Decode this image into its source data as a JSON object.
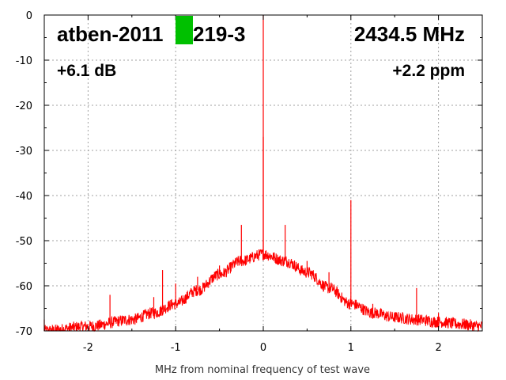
{
  "chart_data": {
    "type": "line",
    "xlabel": "MHz from nominal frequency of test wave",
    "ylabel": "",
    "xlim": [
      -2.5,
      2.5
    ],
    "ylim": [
      -70,
      0
    ],
    "x_ticks": [
      -2,
      -1,
      0,
      1,
      2
    ],
    "y_ticks": [
      0,
      -10,
      -20,
      -30,
      -40,
      -50,
      -60,
      -70
    ],
    "grid": true,
    "annotations": {
      "device": "atben-2011",
      "device_suffix": "219-3",
      "frequency": "2434.5 MHz",
      "level": "+6.1 dB",
      "offset": "+2.2 ppm"
    },
    "colors": {
      "series": "#ff0000",
      "marker": "#00c000",
      "grid": "#a0a0a0"
    },
    "series": [
      {
        "name": "",
        "noise_floor_envelope": {
          "x": [
            -2.5,
            -2.0,
            -1.5,
            -1.25,
            -1.0,
            -0.75,
            -0.5,
            -0.25,
            0.0,
            0.25,
            0.5,
            0.75,
            1.0,
            1.25,
            1.5,
            1.75,
            2.0,
            2.25,
            2.5
          ],
          "y": [
            -70,
            -69,
            -67.5,
            -66,
            -64,
            -61,
            -57.5,
            -54.5,
            -53,
            -54.5,
            -57,
            -60.5,
            -64,
            -66,
            -67,
            -67.5,
            -68,
            -68.5,
            -69
          ]
        },
        "spikes": {
          "x": [
            -2.5,
            -1.75,
            -1.25,
            -1.15,
            -1.0,
            -0.75,
            -0.5,
            -0.25,
            0.0,
            0.0,
            0.25,
            0.5,
            0.75,
            1.0,
            1.25,
            1.75,
            2.0
          ],
          "y": [
            -67.5,
            -62,
            -62.5,
            -56.5,
            -59.5,
            -58,
            -55.5,
            -46.5,
            0,
            -27,
            -46.5,
            -54.5,
            -57,
            -41,
            -64,
            -60.5,
            -66
          ]
        }
      }
    ]
  }
}
